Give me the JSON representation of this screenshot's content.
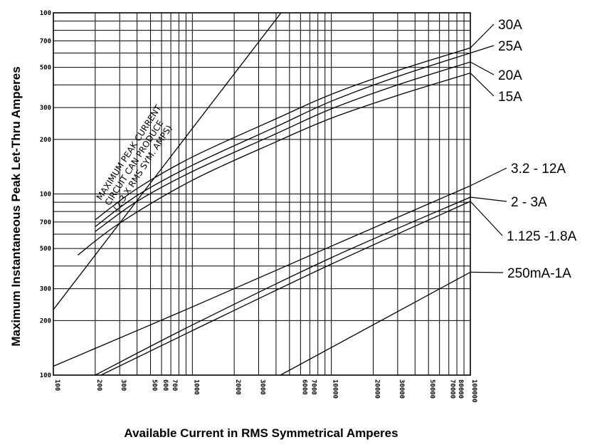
{
  "chart_data": {
    "type": "line",
    "xscale": "log",
    "yscale": "log",
    "xlabel": "Available Current in RMS Symmetrical Amperes",
    "ylabel": "Maximum Instantaneous Peak Let-Thru Amperes",
    "xlim": [
      100,
      100000
    ],
    "ylim": [
      100,
      10000
    ],
    "grid": true,
    "x_ticks": [
      100,
      200,
      300,
      400,
      500,
      600,
      700,
      800,
      900,
      1000,
      2000,
      3000,
      4000,
      5000,
      6000,
      7000,
      8000,
      9000,
      10000,
      20000,
      30000,
      40000,
      50000,
      60000,
      70000,
      80000,
      90000,
      100000
    ],
    "x_tick_labels": [
      "100",
      "200",
      "300",
      "500",
      "600",
      "700",
      "1000",
      "2000",
      "3000",
      "6000",
      "7000",
      "10000",
      "20000",
      "30000",
      "50000",
      "70000",
      "80000",
      "100000"
    ],
    "x_tick_label_values": [
      100,
      200,
      300,
      500,
      600,
      700,
      1000,
      2000,
      3000,
      6000,
      7000,
      10000,
      20000,
      30000,
      50000,
      70000,
      80000,
      100000
    ],
    "y_ticks": [
      100,
      200,
      300,
      400,
      500,
      600,
      700,
      800,
      900,
      1000,
      2000,
      3000,
      4000,
      5000,
      6000,
      7000,
      8000,
      9000,
      10000
    ],
    "y_tick_labels": [
      "100",
      "200",
      "300",
      "500",
      "700",
      "100",
      "200",
      "300",
      "500",
      "700",
      "100"
    ],
    "y_tick_label_values": [
      100,
      200,
      300,
      500,
      700,
      1000,
      2000,
      3000,
      5000,
      7000,
      10000
    ],
    "annotation": [
      "MAXIMUM PEAK CURRENT",
      "CIRCUIT CAN PRODUCE",
      "(2.3 X RMS SYM. AMPS)"
    ],
    "reference_line": {
      "x": [
        100,
        4348
      ],
      "y": [
        230,
        10000
      ]
    },
    "series": [
      {
        "name": "30A",
        "x": [
          200,
          400,
          1000,
          4000,
          10000,
          30000,
          100000
        ],
        "y": [
          720,
          1070,
          1600,
          2600,
          3550,
          4800,
          6400
        ]
      },
      {
        "name": "25A",
        "x": [
          200,
          400,
          1000,
          4000,
          10000,
          30000,
          100000
        ],
        "y": [
          660,
          980,
          1440,
          2350,
          3250,
          4450,
          6000
        ]
      },
      {
        "name": "20A",
        "x": [
          200,
          400,
          1000,
          4000,
          10000,
          30000,
          100000
        ],
        "y": [
          620,
          910,
          1330,
          2150,
          2950,
          4000,
          5350
        ]
      },
      {
        "name": "15A",
        "x": [
          150,
          300,
          1000,
          4000,
          10000,
          30000,
          100000
        ],
        "y": [
          460,
          690,
          1190,
          1940,
          2620,
          3500,
          4650
        ]
      },
      {
        "name": "3.2 - 12A",
        "x": [
          100,
          1000,
          10000,
          100000
        ],
        "y": [
          112,
          238,
          515,
          1110
        ]
      },
      {
        "name": "2 - 3A",
        "x": [
          200,
          1000,
          10000,
          100000
        ],
        "y": [
          100,
          189,
          445,
          960
        ]
      },
      {
        "name": "1.125 -1.8A",
        "x": [
          220,
          1000,
          10000,
          100000
        ],
        "y": [
          100,
          176,
          410,
          910
        ]
      },
      {
        "name": "250mA-1A",
        "x": [
          4300,
          10000,
          100000
        ],
        "y": [
          100,
          142,
          370
        ]
      }
    ]
  }
}
